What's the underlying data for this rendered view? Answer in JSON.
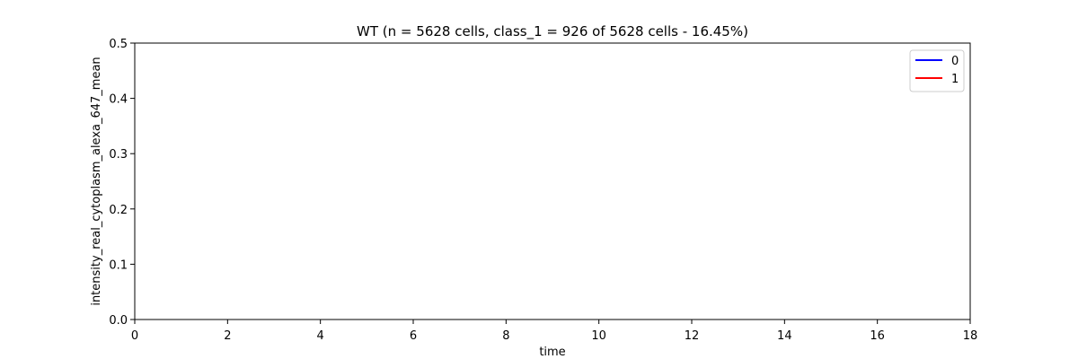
{
  "chart_data": {
    "type": "line",
    "title": "WT (n = 5628 cells, class_1 = 926 of 5628 cells - 16.45%)",
    "xlabel": "time",
    "ylabel": "intensity_real_cytoplasm_alexa_647_mean",
    "xlim": [
      0,
      18
    ],
    "ylim": [
      0,
      0.5
    ],
    "xticks": [
      0,
      2,
      4,
      6,
      8,
      10,
      12,
      14,
      16,
      18
    ],
    "yticks": [
      0.0,
      0.1,
      0.2,
      0.3,
      0.4,
      0.5
    ],
    "grid": false,
    "legend_position": "upper-right",
    "series": [
      {
        "name": "0",
        "color": "#0000ff",
        "x": [],
        "y": []
      },
      {
        "name": "1",
        "color": "#ff0000",
        "x": [],
        "y": []
      }
    ]
  }
}
